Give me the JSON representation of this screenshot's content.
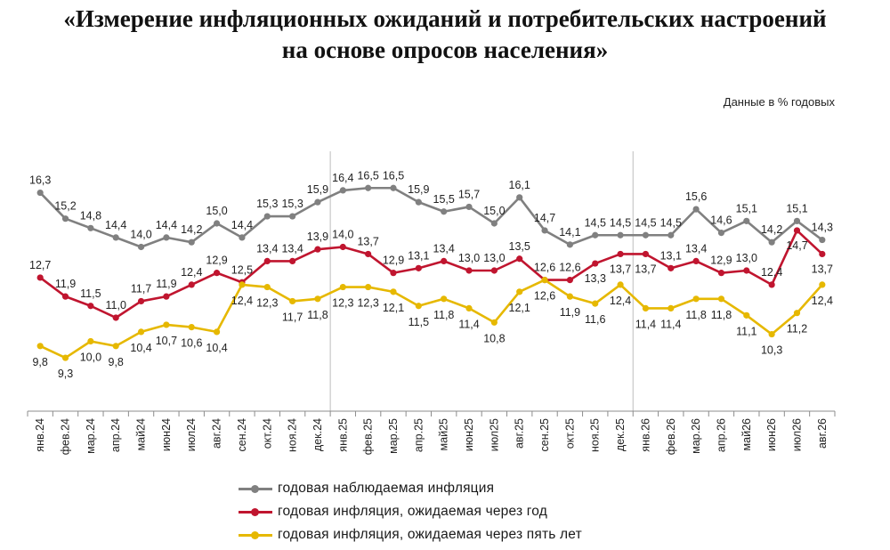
{
  "header": {
    "title_line1": "«Измерение инфляционных ожиданий и потребительских настроений",
    "title_line2": "на основе опросов населения»",
    "units_note": "Данные в % годовых"
  },
  "chart_data": {
    "type": "line",
    "categories": [
      "янв.24",
      "фев.24",
      "мар.24",
      "апр.24",
      "май24",
      "июн24",
      "июл24",
      "авг.24",
      "сен.24",
      "окт.24",
      "ноя.24",
      "дек.24",
      "янв.25",
      "фев.25",
      "мар.25",
      "апр.25",
      "май25",
      "июн25",
      "июл25",
      "авг.25",
      "сен.25",
      "окт.25",
      "ноя.25",
      "дек.25",
      "янв.26",
      "фев.26",
      "мар.26",
      "апр.26",
      "май26",
      "июн26",
      "июл26",
      "авг.26"
    ],
    "series": [
      {
        "name": "годовая наблюдаемая инфляция",
        "color": "#808080",
        "values": [
          16.3,
          15.2,
          14.8,
          14.4,
          14.0,
          14.4,
          14.2,
          15.0,
          14.4,
          15.3,
          15.3,
          15.9,
          16.4,
          16.5,
          16.5,
          15.9,
          15.5,
          15.7,
          15.0,
          16.1,
          14.7,
          14.1,
          14.5,
          14.5,
          14.5,
          14.5,
          15.6,
          14.6,
          15.1,
          14.2,
          15.1,
          14.3
        ]
      },
      {
        "name": "годовая инфляция, ожидаемая через год",
        "color": "#c0152f",
        "values": [
          12.7,
          11.9,
          11.5,
          11.0,
          11.7,
          11.9,
          12.4,
          12.9,
          12.5,
          13.4,
          13.4,
          13.9,
          14.0,
          13.7,
          12.9,
          13.1,
          13.4,
          13.0,
          13.0,
          13.5,
          12.6,
          12.6,
          13.3,
          13.7,
          13.7,
          13.1,
          13.4,
          12.9,
          13.0,
          12.4,
          14.7,
          13.7
        ]
      },
      {
        "name": "годовая инфляция, ожидаемая через пять лет",
        "color": "#e6b800",
        "values": [
          9.8,
          9.3,
          10.0,
          9.8,
          10.4,
          10.7,
          10.6,
          10.4,
          12.4,
          12.3,
          11.7,
          11.8,
          12.3,
          12.3,
          12.1,
          11.5,
          11.8,
          11.4,
          10.8,
          12.1,
          12.6,
          11.9,
          11.6,
          12.4,
          11.4,
          11.4,
          11.8,
          11.8,
          11.1,
          10.3,
          11.2,
          12.4
        ]
      }
    ],
    "ylim": [
      7.0,
      17.5
    ],
    "grid": false,
    "separators_after_categories": [
      "дек.24",
      "дек.25"
    ],
    "legend_position": "bottom"
  }
}
